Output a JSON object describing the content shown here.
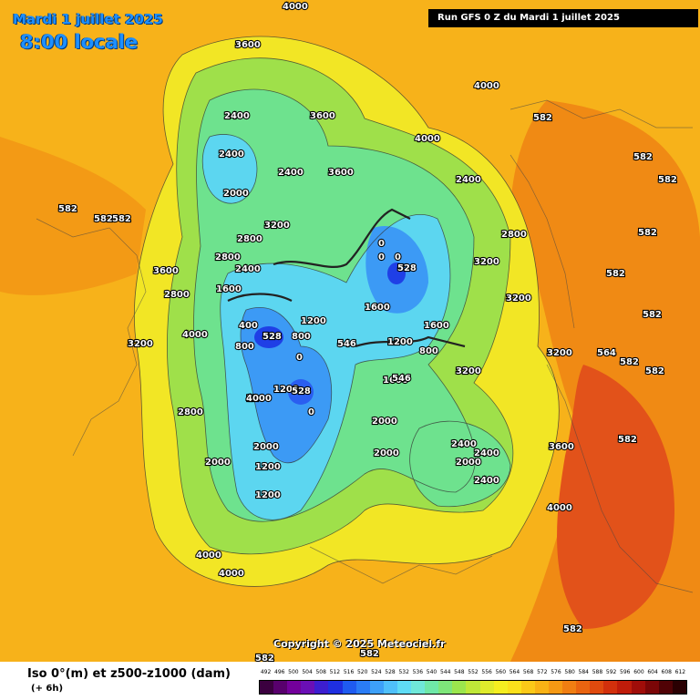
{
  "header": {
    "date": "Mardi 1 juillet 2025",
    "time": "8:00 locale",
    "run": "Run GFS 0 Z du Mardi 1 juillet 2025"
  },
  "copyright": "Copyright © 2025 Meteociel.fr",
  "legend": {
    "title": "Iso 0°(m) et z500-z1000 (dam)",
    "subtitle": "(+ 6h)",
    "ticks": [
      "492",
      "496",
      "500",
      "504",
      "508",
      "512",
      "516",
      "520",
      "524",
      "528",
      "532",
      "536",
      "540",
      "544",
      "548",
      "552",
      "556",
      "560",
      "564",
      "568",
      "572",
      "576",
      "580",
      "584",
      "588",
      "592",
      "596",
      "600",
      "604",
      "608",
      "612"
    ],
    "colors": [
      "#3b003f",
      "#58006d",
      "#73009b",
      "#6a0fb5",
      "#3c1ecf",
      "#1f2fe0",
      "#1f5bf0",
      "#2a7cf6",
      "#3da0f8",
      "#4fc0fa",
      "#5fdcf5",
      "#6fe8d9",
      "#6fe8a8",
      "#7ee67a",
      "#9be64d",
      "#bfe838",
      "#dfeb2c",
      "#f5ee20",
      "#fbe01b",
      "#fbc918",
      "#f9b215",
      "#f69913",
      "#f07e12",
      "#e96410",
      "#e04a0e",
      "#d2300c",
      "#bf1c0a",
      "#a00d09",
      "#7b0607",
      "#500205",
      "#2a0002"
    ]
  },
  "map_labels": [
    {
      "text": "4000"
    },
    {
      "text": "4000"
    },
    {
      "text": "4000"
    },
    {
      "text": "4000"
    },
    {
      "text": "4000"
    },
    {
      "text": "4000"
    },
    {
      "text": "4000"
    },
    {
      "text": "3600"
    },
    {
      "text": "3600"
    },
    {
      "text": "3600"
    },
    {
      "text": "3600"
    },
    {
      "text": "3600"
    },
    {
      "text": "3200"
    },
    {
      "text": "3200"
    },
    {
      "text": "3200"
    },
    {
      "text": "3200"
    },
    {
      "text": "3200"
    },
    {
      "text": "3200"
    },
    {
      "text": "2800"
    },
    {
      "text": "2800"
    },
    {
      "text": "2800"
    },
    {
      "text": "2800"
    },
    {
      "text": "2800"
    },
    {
      "text": "2400"
    },
    {
      "text": "2400"
    },
    {
      "text": "2400"
    },
    {
      "text": "2400"
    },
    {
      "text": "2400"
    },
    {
      "text": "2400"
    },
    {
      "text": "2400"
    },
    {
      "text": "2400"
    },
    {
      "text": "2000"
    },
    {
      "text": "2000"
    },
    {
      "text": "2000"
    },
    {
      "text": "2000"
    },
    {
      "text": "2000"
    },
    {
      "text": "2000"
    },
    {
      "text": "1600"
    },
    {
      "text": "1600"
    },
    {
      "text": "1600"
    },
    {
      "text": "1600"
    },
    {
      "text": "1200"
    },
    {
      "text": "1200"
    },
    {
      "text": "1200"
    },
    {
      "text": "1200"
    },
    {
      "text": "1200"
    },
    {
      "text": "1200"
    },
    {
      "text": "800"
    },
    {
      "text": "800"
    },
    {
      "text": "800"
    },
    {
      "text": "400"
    },
    {
      "text": "400"
    },
    {
      "text": "0"
    },
    {
      "text": "0"
    },
    {
      "text": "0"
    },
    {
      "text": "0"
    },
    {
      "text": "0"
    },
    {
      "text": "528"
    },
    {
      "text": "528"
    },
    {
      "text": "528"
    },
    {
      "text": "582"
    },
    {
      "text": "582"
    },
    {
      "text": "582"
    },
    {
      "text": "582"
    },
    {
      "text": "582"
    },
    {
      "text": "582"
    },
    {
      "text": "582"
    },
    {
      "text": "582"
    },
    {
      "text": "582"
    },
    {
      "text": "582"
    },
    {
      "text": "582"
    },
    {
      "text": "582"
    },
    {
      "text": "582"
    },
    {
      "text": "582"
    },
    {
      "text": "582"
    },
    {
      "text": "564"
    },
    {
      "text": "546"
    },
    {
      "text": "546"
    }
  ]
}
